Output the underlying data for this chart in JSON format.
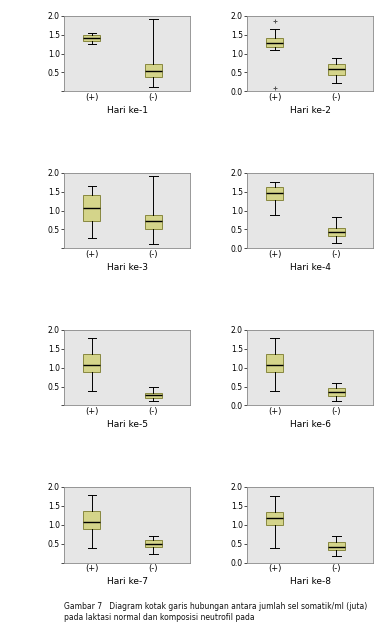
{
  "title_caption": "Gambar 7   Diagram kotak garis hubungan antara jumlah sel somatik/ml (juta) pada laktasi normal dan komposisi neutrofil pada",
  "subplot_titles": [
    "Hari ke-1",
    "Hari ke-2",
    "Hari ke-3",
    "Hari ke-4",
    "Hari ke-5",
    "Hari ke-6",
    "Hari ke-7",
    "Hari ke-8"
  ],
  "x_labels": [
    "(+)",
    "(-)"
  ],
  "ylim": [
    0.0,
    2.0
  ],
  "yticks": [
    0.0,
    0.5,
    1.0,
    1.5,
    2.0
  ],
  "box_facecolor": "#d4d48a",
  "box_edgecolor": "#888840",
  "median_color": "#000000",
  "whisker_color": "#000000",
  "cap_color": "#000000",
  "bg_color": "#e6e6e6",
  "fig_bg": "#ffffff",
  "flier_color": "#555555",
  "plots": [
    {
      "day": 1,
      "pos_box": {
        "q1": 1.32,
        "median": 1.4,
        "q3": 1.48,
        "whislo": 1.25,
        "whishi": 1.55,
        "fliers": []
      },
      "neg_box": {
        "q1": 0.38,
        "median": 0.55,
        "q3": 0.72,
        "whislo": 0.12,
        "whishi": 1.9,
        "fliers": []
      }
    },
    {
      "day": 2,
      "pos_box": {
        "q1": 1.18,
        "median": 1.27,
        "q3": 1.4,
        "whislo": 1.1,
        "whishi": 1.65,
        "fliers": [
          1.85,
          0.08
        ]
      },
      "neg_box": {
        "q1": 0.42,
        "median": 0.6,
        "q3": 0.73,
        "whislo": 0.22,
        "whishi": 0.88,
        "fliers": []
      }
    },
    {
      "day": 3,
      "pos_box": {
        "q1": 0.72,
        "median": 1.08,
        "q3": 1.42,
        "whislo": 0.28,
        "whishi": 1.65,
        "fliers": []
      },
      "neg_box": {
        "q1": 0.52,
        "median": 0.72,
        "q3": 0.88,
        "whislo": 0.12,
        "whishi": 1.9,
        "fliers": []
      }
    },
    {
      "day": 4,
      "pos_box": {
        "q1": 1.28,
        "median": 1.45,
        "q3": 1.62,
        "whislo": 0.88,
        "whishi": 1.75,
        "fliers": []
      },
      "neg_box": {
        "q1": 0.33,
        "median": 0.43,
        "q3": 0.55,
        "whislo": 0.15,
        "whishi": 0.83,
        "fliers": []
      }
    },
    {
      "day": 5,
      "pos_box": {
        "q1": 0.88,
        "median": 1.08,
        "q3": 1.35,
        "whislo": 0.38,
        "whishi": 1.78,
        "fliers": []
      },
      "neg_box": {
        "q1": 0.2,
        "median": 0.27,
        "q3": 0.33,
        "whislo": 0.12,
        "whishi": 0.48,
        "fliers": []
      }
    },
    {
      "day": 6,
      "pos_box": {
        "q1": 0.88,
        "median": 1.08,
        "q3": 1.35,
        "whislo": 0.38,
        "whishi": 1.78,
        "fliers": []
      },
      "neg_box": {
        "q1": 0.25,
        "median": 0.35,
        "q3": 0.45,
        "whislo": 0.12,
        "whishi": 0.6,
        "fliers": []
      }
    },
    {
      "day": 7,
      "pos_box": {
        "q1": 0.88,
        "median": 1.08,
        "q3": 1.35,
        "whislo": 0.38,
        "whishi": 1.78,
        "fliers": []
      },
      "neg_box": {
        "q1": 0.4,
        "median": 0.5,
        "q3": 0.6,
        "whislo": 0.22,
        "whishi": 0.7,
        "fliers": []
      }
    },
    {
      "day": 8,
      "pos_box": {
        "q1": 1.0,
        "median": 1.18,
        "q3": 1.32,
        "whislo": 0.38,
        "whishi": 1.75,
        "fliers": []
      },
      "neg_box": {
        "q1": 0.33,
        "median": 0.42,
        "q3": 0.55,
        "whislo": 0.18,
        "whishi": 0.7,
        "fliers": []
      }
    }
  ],
  "font_size_tick": 5.5,
  "font_size_xlabel": 6.0,
  "font_size_title": 6.5,
  "font_size_caption": 5.5
}
